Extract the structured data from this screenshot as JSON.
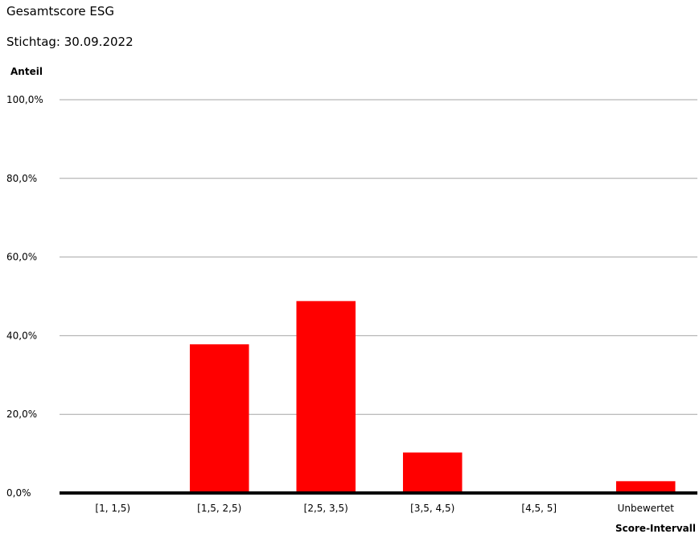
{
  "header": {
    "title": "Gesamtscore ESG",
    "subtitle": "Stichtag: 30.09.2022"
  },
  "chart_data": {
    "type": "bar",
    "title": "Gesamtscore ESG",
    "subtitle": "Stichtag: 30.09.2022",
    "xlabel": "Score-Intervall",
    "ylabel": "Anteil",
    "categories": [
      "[1, 1,5)",
      "[1,5, 2,5)",
      "[2,5, 3,5)",
      "[3,5, 4,5)",
      "[4,5, 5]",
      "Unbewertet"
    ],
    "values": [
      0.0,
      37.8,
      48.8,
      10.3,
      0.0,
      3.0
    ],
    "unit": "%",
    "ylim": [
      0,
      100
    ],
    "yticks": [
      0,
      20,
      40,
      60,
      80,
      100
    ],
    "ytick_labels": [
      "0,0%",
      "20,0%",
      "40,0%",
      "60,0%",
      "80,0%",
      "100,0%"
    ],
    "grid": true,
    "legend": "none",
    "bar_color": "#ff0000",
    "grid_color": "#a6a6a6",
    "axis_color": "#000000"
  }
}
